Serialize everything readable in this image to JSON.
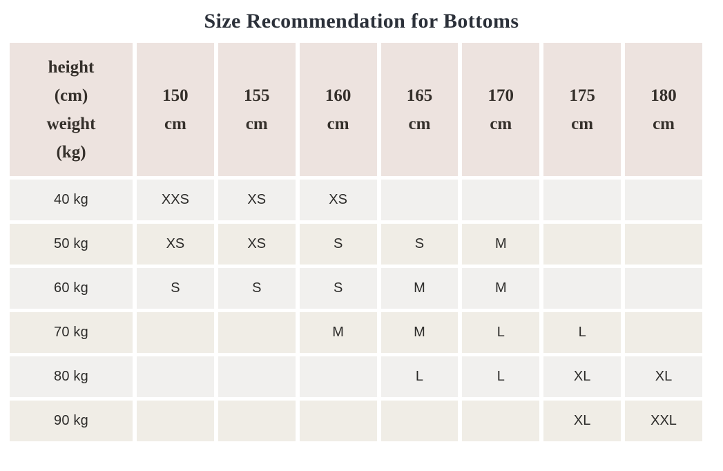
{
  "page_title": "Size Recommendation for Bottoms",
  "colors": {
    "page_bg": "#ffffff",
    "header_cell_bg": "#ede3df",
    "row_odd_bg": "#f1f0ee",
    "row_even_bg": "#f0ede6",
    "title_text": "#2b3039",
    "header_text": "#35302b",
    "body_text": "#2c2b29"
  },
  "table": {
    "corner_lines": [
      "height",
      "(cm)",
      "weight",
      "(kg)"
    ],
    "columns": [
      {
        "value": "150",
        "unit": "cm"
      },
      {
        "value": "155",
        "unit": "cm"
      },
      {
        "value": "160",
        "unit": "cm"
      },
      {
        "value": "165",
        "unit": "cm"
      },
      {
        "value": "170",
        "unit": "cm"
      },
      {
        "value": "175",
        "unit": "cm"
      },
      {
        "value": "180",
        "unit": "cm"
      }
    ],
    "rows": [
      {
        "label": "40 kg",
        "cells": [
          "XXS",
          "XS",
          "XS",
          "",
          "",
          "",
          ""
        ]
      },
      {
        "label": "50 kg",
        "cells": [
          "XS",
          "XS",
          "S",
          "S",
          "M",
          "",
          ""
        ]
      },
      {
        "label": "60 kg",
        "cells": [
          "S",
          "S",
          "S",
          "M",
          "M",
          "",
          ""
        ]
      },
      {
        "label": "70 kg",
        "cells": [
          "",
          "",
          "M",
          "M",
          "L",
          "L",
          ""
        ]
      },
      {
        "label": "80 kg",
        "cells": [
          "",
          "",
          "",
          "L",
          "L",
          "XL",
          "XL"
        ]
      },
      {
        "label": "90 kg",
        "cells": [
          "",
          "",
          "",
          "",
          "",
          "XL",
          "XXL"
        ]
      }
    ]
  },
  "chart_data": {
    "type": "table",
    "title": "Size Recommendation for Bottoms",
    "column_dimension": "height (cm)",
    "row_dimension": "weight (kg)",
    "columns": [
      "150 cm",
      "155 cm",
      "160 cm",
      "165 cm",
      "170 cm",
      "175 cm",
      "180 cm"
    ],
    "rows": [
      "40 kg",
      "50 kg",
      "60 kg",
      "70 kg",
      "80 kg",
      "90 kg"
    ],
    "values": [
      [
        "XXS",
        "XS",
        "XS",
        "",
        "",
        "",
        ""
      ],
      [
        "XS",
        "XS",
        "S",
        "S",
        "M",
        "",
        ""
      ],
      [
        "S",
        "S",
        "S",
        "M",
        "M",
        "",
        ""
      ],
      [
        "",
        "",
        "M",
        "M",
        "L",
        "L",
        ""
      ],
      [
        "",
        "",
        "",
        "L",
        "L",
        "XL",
        "XL"
      ],
      [
        "",
        "",
        "",
        "",
        "",
        "XL",
        "XXL"
      ]
    ]
  }
}
